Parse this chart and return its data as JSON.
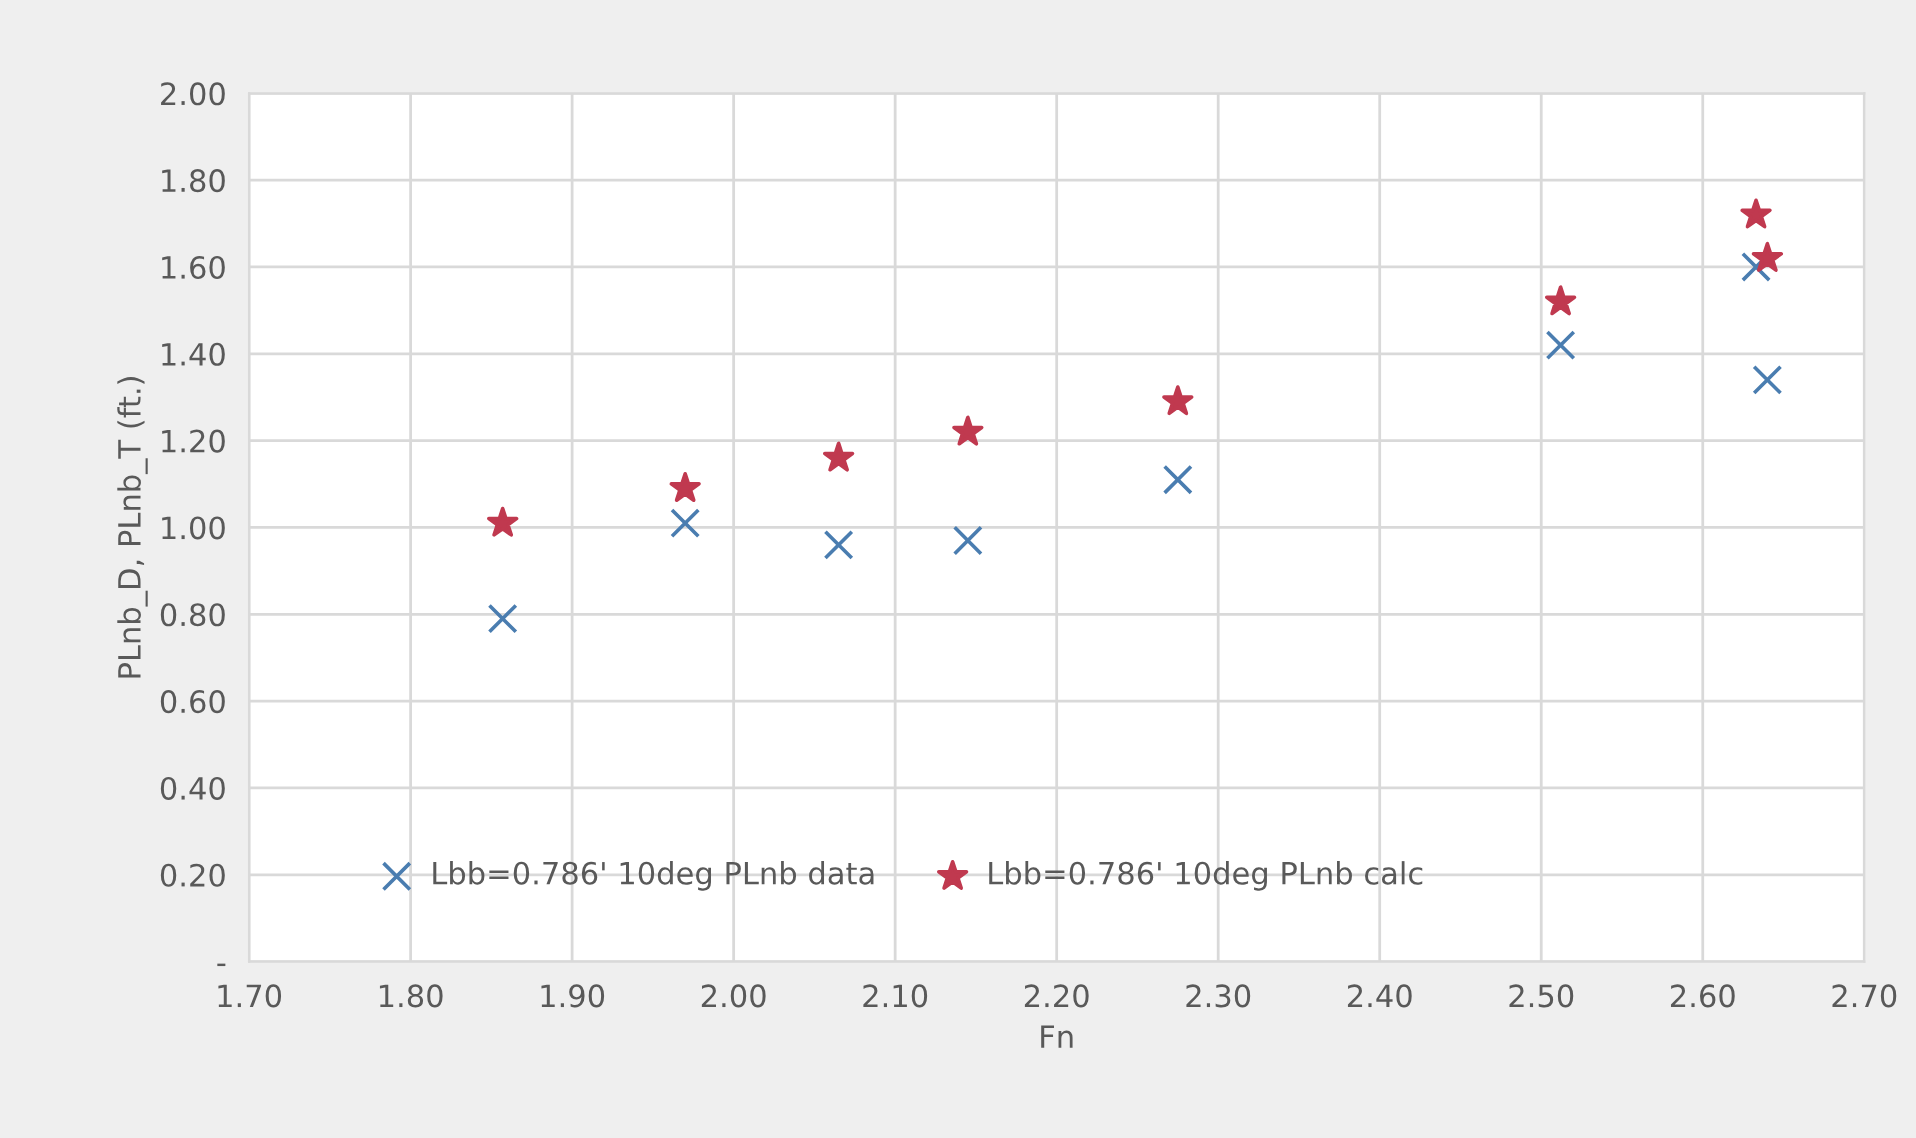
{
  "chart_data": {
    "type": "scatter",
    "xlabel": "Fn",
    "ylabel": "PLnb_D, PLnb_T (ft.)",
    "x": [
      1.857,
      1.97,
      2.065,
      2.145,
      2.275,
      2.512,
      2.633,
      2.64
    ],
    "series": [
      {
        "name": "Lbb=0.786' 10deg PLnb data",
        "color": "#4a7db0",
        "marker": "cross",
        "values": [
          0.79,
          1.01,
          0.96,
          0.97,
          1.11,
          1.42,
          1.6,
          1.34
        ]
      },
      {
        "name": "Lbb=0.786' 10deg PLnb calc",
        "color": "#c0394f",
        "marker": "star",
        "values": [
          1.01,
          1.09,
          1.16,
          1.22,
          1.29,
          1.52,
          1.72,
          1.62
        ]
      }
    ],
    "xlim": [
      1.7,
      2.7
    ],
    "xticks": [
      {
        "value": 1.7,
        "label": "1.70"
      },
      {
        "value": 1.8,
        "label": "1.80"
      },
      {
        "value": 1.9,
        "label": "1.90"
      },
      {
        "value": 2.0,
        "label": "2.00"
      },
      {
        "value": 2.1,
        "label": "2.10"
      },
      {
        "value": 2.2,
        "label": "2.20"
      },
      {
        "value": 2.3,
        "label": "2.30"
      },
      {
        "value": 2.4,
        "label": "2.40"
      },
      {
        "value": 2.5,
        "label": "2.50"
      },
      {
        "value": 2.6,
        "label": "2.60"
      },
      {
        "value": 2.7,
        "label": "2.70"
      }
    ],
    "ylim": [
      0,
      2
    ],
    "yticks": [
      {
        "value": 0,
        "label": "-"
      },
      {
        "value": 0.2,
        "label": "0.20"
      },
      {
        "value": 0.4,
        "label": "0.40"
      },
      {
        "value": 0.6,
        "label": "0.60"
      },
      {
        "value": 0.8,
        "label": "0.80"
      },
      {
        "value": 1.0,
        "label": "1.00"
      },
      {
        "value": 1.2,
        "label": "1.20"
      },
      {
        "value": 1.4,
        "label": "1.40"
      },
      {
        "value": 1.6,
        "label": "1.60"
      },
      {
        "value": 1.8,
        "label": "1.80"
      },
      {
        "value": 2.0,
        "label": "2.00"
      }
    ],
    "grid": true,
    "legend": "bottom"
  }
}
